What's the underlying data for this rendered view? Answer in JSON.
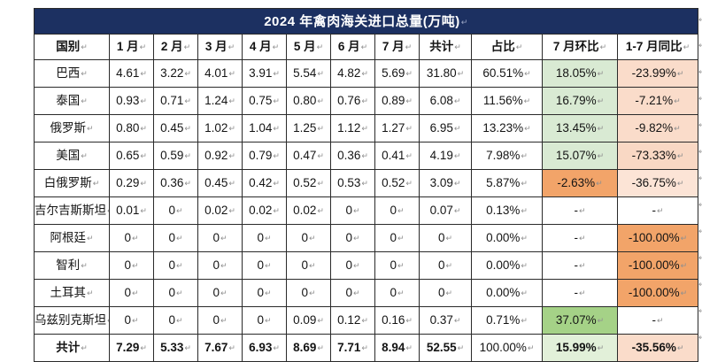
{
  "title": "2024 年禽肉海关进口总量(万吨)",
  "return_mark": "↵",
  "columns": [
    "国别",
    "1 月",
    "2 月",
    "3 月",
    "4 月",
    "5 月",
    "6 月",
    "7 月",
    "共计",
    "占比",
    "7 月环比",
    "1-7 月同比"
  ],
  "rows": [
    {
      "name": "巴西",
      "values": [
        "4.61",
        "3.22",
        "4.01",
        "3.91",
        "5.54",
        "4.82",
        "5.69",
        "31.80",
        "60.51%",
        "18.05%",
        "-23.99%"
      ],
      "mom_bg": "#d9ead3",
      "yoy_bg": "#fadcca",
      "bold": false
    },
    {
      "name": "泰国",
      "values": [
        "0.93",
        "0.71",
        "1.24",
        "0.75",
        "0.80",
        "0.76",
        "0.89",
        "6.08",
        "11.56%",
        "16.79%",
        "-7.21%"
      ],
      "mom_bg": "#d9ead3",
      "yoy_bg": "#fadcca",
      "bold": false
    },
    {
      "name": "俄罗斯",
      "values": [
        "0.80",
        "0.45",
        "1.02",
        "1.04",
        "1.25",
        "1.12",
        "1.27",
        "6.95",
        "13.23%",
        "13.45%",
        "-9.82%"
      ],
      "mom_bg": "#d9ead3",
      "yoy_bg": "#fadcca",
      "bold": false
    },
    {
      "name": "美国",
      "values": [
        "0.65",
        "0.59",
        "0.92",
        "0.79",
        "0.47",
        "0.36",
        "0.41",
        "4.19",
        "7.98%",
        "15.07%",
        "-73.33%"
      ],
      "mom_bg": "#d9ead3",
      "yoy_bg": "#f9d8c4",
      "bold": false
    },
    {
      "name": "白俄罗斯",
      "values": [
        "0.29",
        "0.36",
        "0.45",
        "0.42",
        "0.52",
        "0.53",
        "0.52",
        "3.09",
        "5.87%",
        "-2.63%",
        "-36.75%"
      ],
      "mom_bg": "#f2a469",
      "yoy_bg": "#fce4d6",
      "bold": false
    },
    {
      "name": "吉尔吉斯斯坦",
      "values": [
        "0.01",
        "0",
        "0.02",
        "0.02",
        "0.02",
        "0",
        "0",
        "0.07",
        "0.13%",
        "-",
        "-"
      ],
      "mom_bg": null,
      "yoy_bg": null,
      "bold": false
    },
    {
      "name": "阿根廷",
      "values": [
        "0",
        "0",
        "0",
        "0",
        "0",
        "0",
        "0",
        "0",
        "0.00%",
        "-",
        "-100.00%"
      ],
      "mom_bg": null,
      "yoy_bg": "#f2a469",
      "bold": false
    },
    {
      "name": "智利",
      "values": [
        "0",
        "0",
        "0",
        "0",
        "0",
        "0",
        "0",
        "0",
        "0.00%",
        "-",
        "-100.00%"
      ],
      "mom_bg": null,
      "yoy_bg": "#f2a469",
      "bold": false
    },
    {
      "name": "土耳其",
      "values": [
        "0",
        "0",
        "0",
        "0",
        "0",
        "0",
        "0",
        "0",
        "0.00%",
        "-",
        "-100.00%"
      ],
      "mom_bg": null,
      "yoy_bg": "#f2a469",
      "bold": false
    },
    {
      "name": "乌兹别克斯坦",
      "values": [
        "0",
        "0",
        "0",
        "0",
        "0.09",
        "0.12",
        "0.16",
        "0.37",
        "0.71%",
        "37.07%",
        "-"
      ],
      "mom_bg": "#a5d287",
      "yoy_bg": null,
      "bold": false
    },
    {
      "name": "共计",
      "values": [
        "7.29",
        "5.33",
        "7.67",
        "6.93",
        "8.69",
        "7.71",
        "8.94",
        "52.55",
        "100.00%",
        "15.99%",
        "-35.56%"
      ],
      "mom_bg": "#e2f0d9",
      "yoy_bg": "#fadcca",
      "bold": true
    }
  ],
  "colors": {
    "title_bg": "#1c3061",
    "title_text": "#ffffff",
    "border": "#2a2a2a",
    "positive_mom_green": "#d9ead3",
    "strong_green": "#a5d287",
    "total_green": "#e2f0d9",
    "negative_salmon": "#fadcca",
    "light_salmon": "#fce4d6",
    "strong_orange": "#f2a469"
  }
}
